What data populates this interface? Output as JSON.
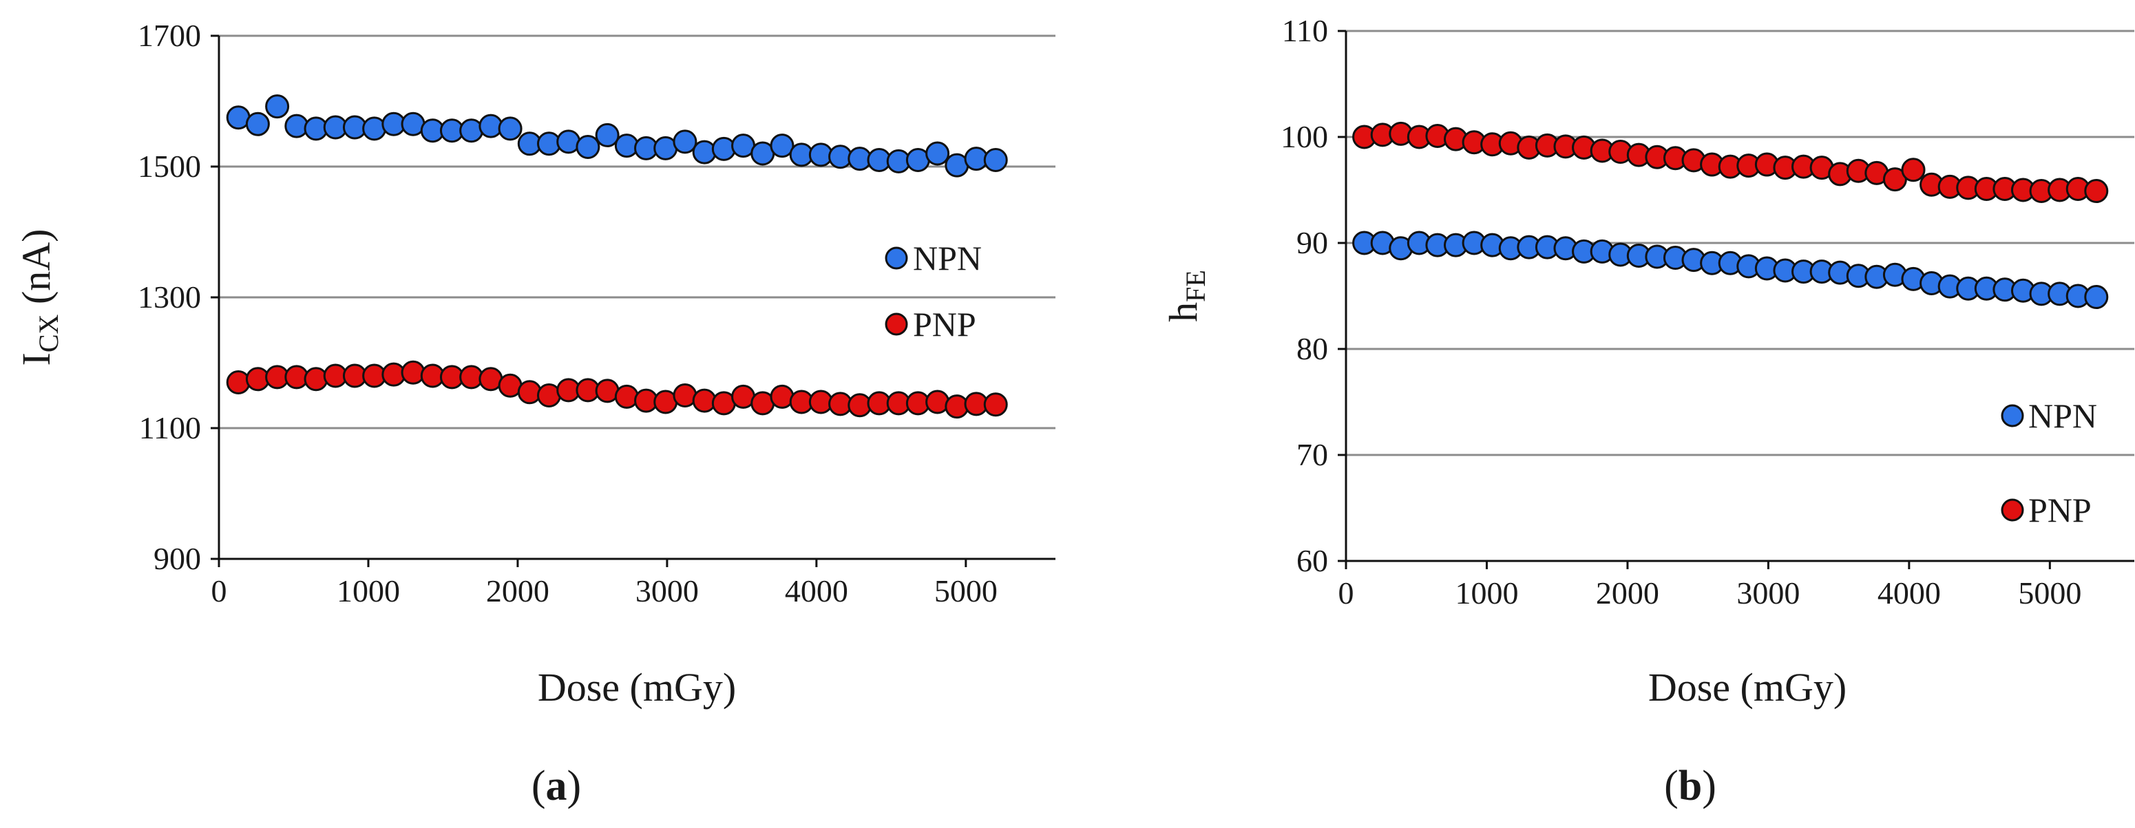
{
  "chart_data": [
    {
      "type": "scatter",
      "panel_label": "(a)",
      "ylabel_main": "I",
      "ylabel_sub": "CX",
      "ylabel_unit": " (nA)",
      "xlabel": "Dose (mGy)",
      "xlim": [
        0,
        5600
      ],
      "ylim": [
        900,
        1700
      ],
      "xticks": [
        0,
        1000,
        2000,
        3000,
        4000,
        5000
      ],
      "yticks": [
        900,
        1100,
        1300,
        1500,
        1700
      ],
      "gridlines_y": [
        1100,
        1300,
        1500,
        1700
      ],
      "legend_position": "right",
      "series": [
        {
          "name": "NPN",
          "color": "#2E75E8",
          "x": [
            130,
            260,
            390,
            520,
            650,
            780,
            910,
            1040,
            1170,
            1300,
            1430,
            1560,
            1690,
            1820,
            1950,
            2080,
            2210,
            2340,
            2470,
            2600,
            2730,
            2860,
            2990,
            3120,
            3250,
            3380,
            3510,
            3640,
            3770,
            3900,
            4030,
            4160,
            4290,
            4420,
            4550,
            4680,
            4810,
            4940,
            5070,
            5200
          ],
          "y": [
            1575,
            1565,
            1592,
            1562,
            1558,
            1560,
            1560,
            1558,
            1565,
            1565,
            1555,
            1555,
            1555,
            1562,
            1558,
            1535,
            1535,
            1538,
            1530,
            1548,
            1532,
            1528,
            1528,
            1538,
            1522,
            1527,
            1532,
            1520,
            1532,
            1518,
            1518,
            1515,
            1512,
            1510,
            1508,
            1510,
            1520,
            1502,
            1512,
            1510
          ]
        },
        {
          "name": "PNP",
          "color": "#E01010",
          "x": [
            130,
            260,
            390,
            520,
            650,
            780,
            910,
            1040,
            1170,
            1300,
            1430,
            1560,
            1690,
            1820,
            1950,
            2080,
            2210,
            2340,
            2470,
            2600,
            2730,
            2860,
            2990,
            3120,
            3250,
            3380,
            3510,
            3640,
            3770,
            3900,
            4030,
            4160,
            4290,
            4420,
            4550,
            4680,
            4810,
            4940,
            5070,
            5200
          ],
          "y": [
            1170,
            1175,
            1178,
            1178,
            1175,
            1180,
            1180,
            1180,
            1182,
            1185,
            1180,
            1178,
            1178,
            1175,
            1165,
            1155,
            1150,
            1158,
            1158,
            1157,
            1148,
            1142,
            1140,
            1150,
            1142,
            1138,
            1148,
            1138,
            1148,
            1140,
            1140,
            1137,
            1135,
            1138,
            1138,
            1138,
            1140,
            1133,
            1137,
            1136
          ]
        }
      ]
    },
    {
      "type": "scatter",
      "panel_label": "(b)",
      "ylabel_main": "h",
      "ylabel_sub": "FE",
      "ylabel_unit": "",
      "xlabel": "Dose (mGy)",
      "xlim": [
        0,
        5600
      ],
      "ylim": [
        60,
        110
      ],
      "xticks": [
        0,
        1000,
        2000,
        3000,
        4000,
        5000
      ],
      "yticks": [
        60,
        70,
        80,
        90,
        100,
        110
      ],
      "gridlines_y": [
        70,
        80,
        90,
        100,
        110
      ],
      "legend_position": "bottom-right",
      "series": [
        {
          "name": "NPN",
          "color": "#2E75E8",
          "x": [
            130,
            260,
            390,
            520,
            650,
            780,
            910,
            1040,
            1170,
            1300,
            1430,
            1560,
            1690,
            1820,
            1950,
            2080,
            2210,
            2340,
            2470,
            2600,
            2730,
            2860,
            2990,
            3120,
            3250,
            3380,
            3510,
            3640,
            3770,
            3900,
            4030,
            4160,
            4290,
            4420,
            4550,
            4680,
            4810,
            4940,
            5070,
            5200,
            5330
          ],
          "y": [
            90.0,
            90.0,
            89.5,
            90.0,
            89.8,
            89.8,
            90.0,
            89.8,
            89.5,
            89.6,
            89.6,
            89.5,
            89.2,
            89.2,
            88.9,
            88.8,
            88.7,
            88.6,
            88.4,
            88.1,
            88.1,
            87.8,
            87.6,
            87.4,
            87.3,
            87.3,
            87.2,
            86.9,
            86.8,
            87.0,
            86.6,
            86.2,
            85.9,
            85.7,
            85.7,
            85.6,
            85.5,
            85.2,
            85.2,
            85.0,
            84.9
          ]
        },
        {
          "name": "PNP",
          "color": "#E01010",
          "x": [
            130,
            260,
            390,
            520,
            650,
            780,
            910,
            1040,
            1170,
            1300,
            1430,
            1560,
            1690,
            1820,
            1950,
            2080,
            2210,
            2340,
            2470,
            2600,
            2730,
            2860,
            2990,
            3120,
            3250,
            3380,
            3510,
            3640,
            3770,
            3900,
            4030,
            4160,
            4290,
            4420,
            4550,
            4680,
            4810,
            4940,
            5070,
            5200,
            5330
          ],
          "y": [
            100.0,
            100.2,
            100.3,
            100.0,
            100.1,
            99.8,
            99.5,
            99.3,
            99.4,
            99.0,
            99.2,
            99.1,
            99.0,
            98.7,
            98.6,
            98.3,
            98.1,
            98.0,
            97.8,
            97.4,
            97.2,
            97.3,
            97.4,
            97.1,
            97.2,
            97.1,
            96.5,
            96.8,
            96.6,
            96.0,
            96.9,
            95.5,
            95.3,
            95.2,
            95.1,
            95.1,
            95.0,
            94.9,
            95.0,
            95.1,
            94.9
          ]
        }
      ]
    }
  ]
}
